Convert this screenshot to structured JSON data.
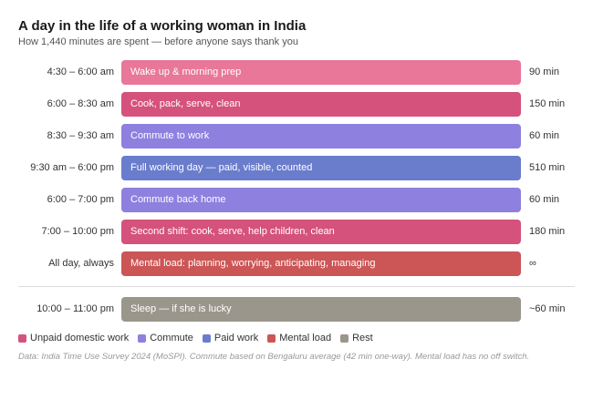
{
  "title": "A day in the life of a working woman in India",
  "subtitle": "How 1,440 minutes are spent — before anyone says thank you",
  "colors": {
    "unpaid_light": "#e8779a",
    "unpaid": "#d4527c",
    "commute": "#8e80df",
    "paid": "#6a7ccc",
    "mental": "#cc5555",
    "rest": "#9a968c"
  },
  "rows": [
    {
      "time": "4:30 – 6:00 am",
      "label": "Wake up & morning prep",
      "duration": "90 min",
      "color": "#e8779a"
    },
    {
      "time": "6:00 – 8:30 am",
      "label": "Cook, pack, serve, clean",
      "duration": "150 min",
      "color": "#d4527c"
    },
    {
      "time": "8:30 – 9:30 am",
      "label": "Commute to work",
      "duration": "60 min",
      "color": "#8e80df"
    },
    {
      "time": "9:30 am – 6:00 pm",
      "label": "Full working day — paid, visible, counted",
      "duration": "510 min",
      "color": "#6a7ccc"
    },
    {
      "time": "6:00 – 7:00 pm",
      "label": "Commute back home",
      "duration": "60 min",
      "color": "#8e80df"
    },
    {
      "time": "7:00 – 10:00 pm",
      "label": "Second shift: cook, serve, help children, clean",
      "duration": "180 min",
      "color": "#d4527c"
    },
    {
      "time": "All day, always",
      "label": "Mental load: planning, worrying, anticipating, managing",
      "duration": "∞",
      "color": "#cc5555"
    },
    {
      "time": "10:00 – 11:00 pm",
      "label": "Sleep — if she is lucky",
      "duration": "~60 min",
      "color": "#9a968c"
    }
  ],
  "legend": [
    {
      "label": "Unpaid domestic work",
      "color": "#d4527c"
    },
    {
      "label": "Commute",
      "color": "#8e80df"
    },
    {
      "label": "Paid work",
      "color": "#6a7ccc"
    },
    {
      "label": "Mental load",
      "color": "#cc5555"
    },
    {
      "label": "Rest",
      "color": "#9a968c"
    }
  ],
  "footnote": "Data: India Time Use Survey 2024 (MoSPI). Commute based on Bengaluru average (42 min one-way). Mental load has no off switch."
}
